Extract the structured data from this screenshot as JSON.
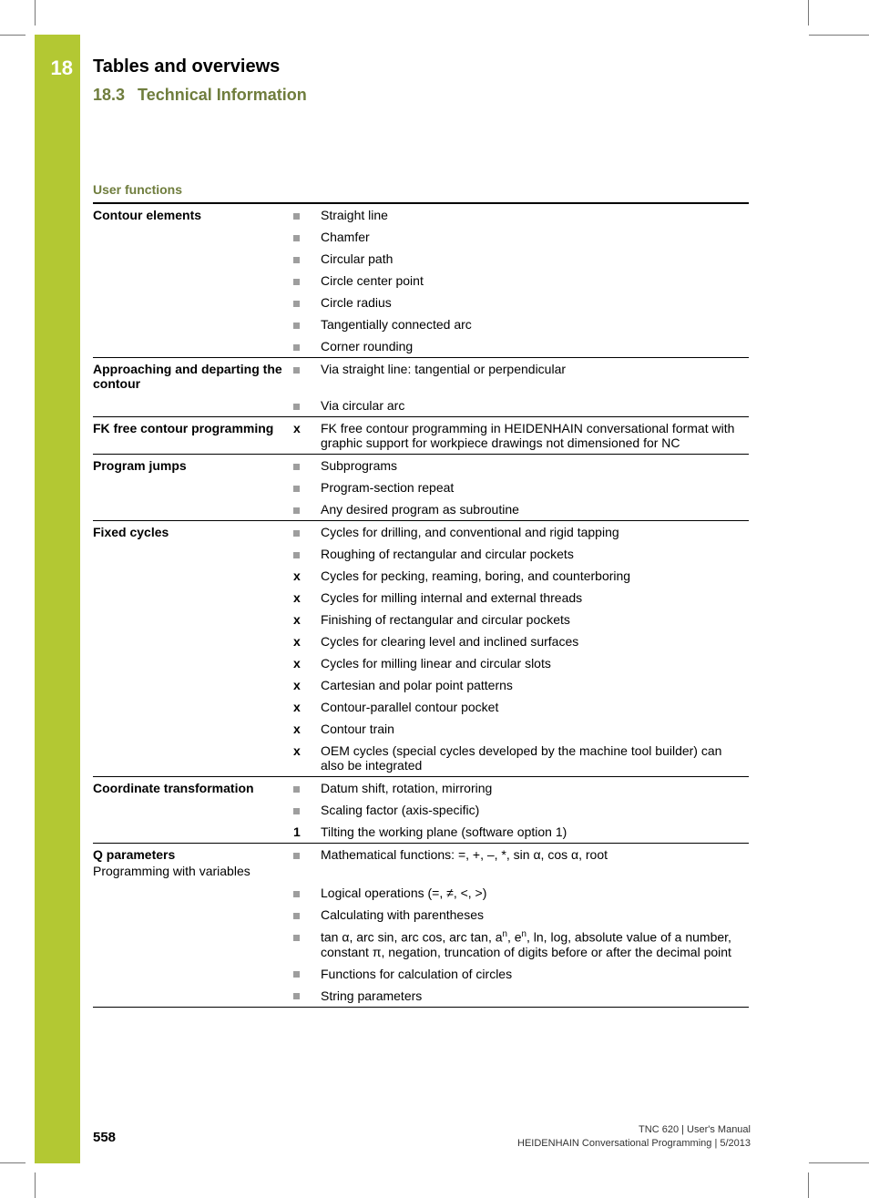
{
  "chapter": {
    "number": "18",
    "title": "Tables and overviews"
  },
  "section": {
    "number": "18.3",
    "title": "Technical Information"
  },
  "table_title": "User functions",
  "marks": {
    "square": "■",
    "x": "x",
    "one": "1"
  },
  "groups": [
    {
      "category": "Contour elements",
      "rows": [
        {
          "mark": "square",
          "text": "Straight line"
        },
        {
          "mark": "square",
          "text": "Chamfer"
        },
        {
          "mark": "square",
          "text": "Circular path"
        },
        {
          "mark": "square",
          "text": "Circle center point"
        },
        {
          "mark": "square",
          "text": "Circle radius"
        },
        {
          "mark": "square",
          "text": "Tangentially connected arc"
        },
        {
          "mark": "square",
          "text": "Corner rounding"
        }
      ]
    },
    {
      "category": "Approaching and departing the contour",
      "rows": [
        {
          "mark": "square",
          "text": "Via straight line: tangential or perpendicular"
        },
        {
          "mark": "square",
          "text": "Via circular arc"
        }
      ]
    },
    {
      "category": "FK free contour programming",
      "rows": [
        {
          "mark": "x",
          "text": "FK free contour programming in HEIDENHAIN conversational format with graphic support for workpiece drawings not dimensioned for NC"
        }
      ]
    },
    {
      "category": "Program jumps",
      "rows": [
        {
          "mark": "square",
          "text": "Subprograms"
        },
        {
          "mark": "square",
          "text": "Program-section repeat"
        },
        {
          "mark": "square",
          "text": "Any desired program as subroutine"
        }
      ]
    },
    {
      "category": "Fixed cycles",
      "rows": [
        {
          "mark": "square",
          "text": "Cycles for drilling, and conventional and rigid tapping"
        },
        {
          "mark": "square",
          "text": "Roughing of rectangular and circular pockets"
        },
        {
          "mark": "x",
          "text": "Cycles for pecking, reaming, boring, and counterboring"
        },
        {
          "mark": "x",
          "text": "Cycles for milling internal and external threads"
        },
        {
          "mark": "x",
          "text": "Finishing of rectangular and circular pockets"
        },
        {
          "mark": "x",
          "text": "Cycles for clearing level and inclined surfaces"
        },
        {
          "mark": "x",
          "text": "Cycles for milling linear and circular slots"
        },
        {
          "mark": "x",
          "text": "Cartesian and polar point patterns"
        },
        {
          "mark": "x",
          "text": "Contour-parallel contour pocket"
        },
        {
          "mark": "x",
          "text": "Contour train"
        },
        {
          "mark": "x",
          "text": "OEM cycles (special cycles developed by the machine tool builder) can also be integrated"
        }
      ]
    },
    {
      "category": "Coordinate transformation",
      "rows": [
        {
          "mark": "square",
          "text": "Datum shift, rotation, mirroring"
        },
        {
          "mark": "square",
          "text": "Scaling factor (axis-specific)"
        },
        {
          "mark": "one",
          "text": "Tilting the working plane (software option 1)"
        }
      ]
    },
    {
      "category": "Q parameters",
      "subcategory": "Programming with variables",
      "rows": [
        {
          "mark": "square",
          "html": "Mathematical functions: =, +, –, *, sin α, cos α, root"
        },
        {
          "mark": "square",
          "html": "Logical operations (=, ≠, <, >)"
        },
        {
          "mark": "square",
          "html": "Calculating with parentheses"
        },
        {
          "mark": "square",
          "html": "tan α, arc sin, arc cos, arc tan, a<span class=\"sup\">n</span>, e<span class=\"sup\">n</span>, ln, log, absolute value of a number, constant π, negation, truncation of digits before or after the decimal point"
        },
        {
          "mark": "square",
          "html": "Functions for calculation of circles"
        },
        {
          "mark": "square",
          "html": "String parameters"
        }
      ]
    }
  ],
  "footer": {
    "page": "558",
    "right_line1": "TNC 620 | User's Manual",
    "right_line2": "HEIDENHAIN Conversational Programming | 5/2013"
  },
  "colors": {
    "accent_green": "#b3c833",
    "heading_green": "#6f7d3d",
    "square_gray": "#9e9e9e"
  }
}
